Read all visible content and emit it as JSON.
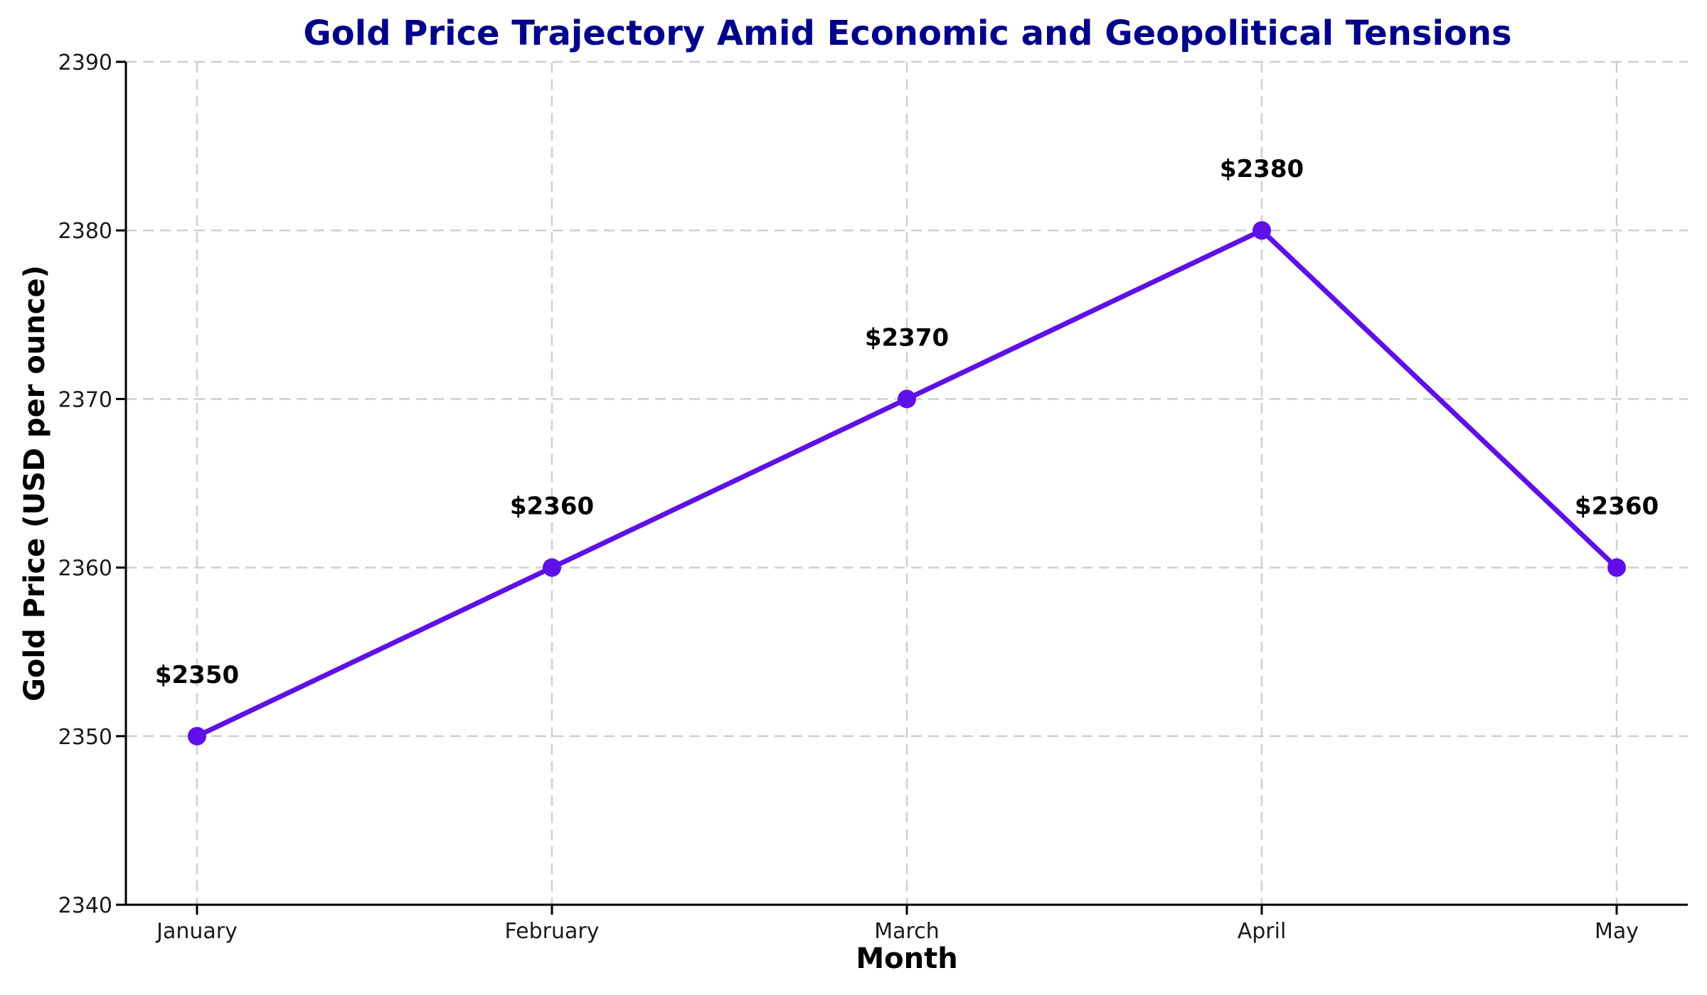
{
  "chart_data": {
    "type": "line",
    "title": "Gold Price Trajectory Amid Economic and Geopolitical Tensions",
    "xlabel": "Month",
    "ylabel": "Gold Price (USD per ounce)",
    "categories": [
      "January",
      "February",
      "March",
      "April",
      "May"
    ],
    "series": [
      {
        "name": "Gold Price (USD per ounce)",
        "values": [
          2350,
          2360,
          2370,
          2380,
          2360
        ]
      }
    ],
    "point_labels": [
      "$2350",
      "$2360",
      "$2370",
      "$2380",
      "$2360"
    ],
    "ylim": [
      2340,
      2390
    ],
    "yticks": [
      2340,
      2350,
      2360,
      2370,
      2380,
      2390
    ],
    "grid": true,
    "grid_style": "dashed",
    "legend_position": "none",
    "colors": {
      "line": "#5F0FE8",
      "marker": "#5F0FE8",
      "title": "#00008B",
      "grid": "#cfcfcf",
      "axis": "#000000",
      "tick_label": "#1a1a1a",
      "annotation": "#000000",
      "background": "#ffffff"
    }
  }
}
